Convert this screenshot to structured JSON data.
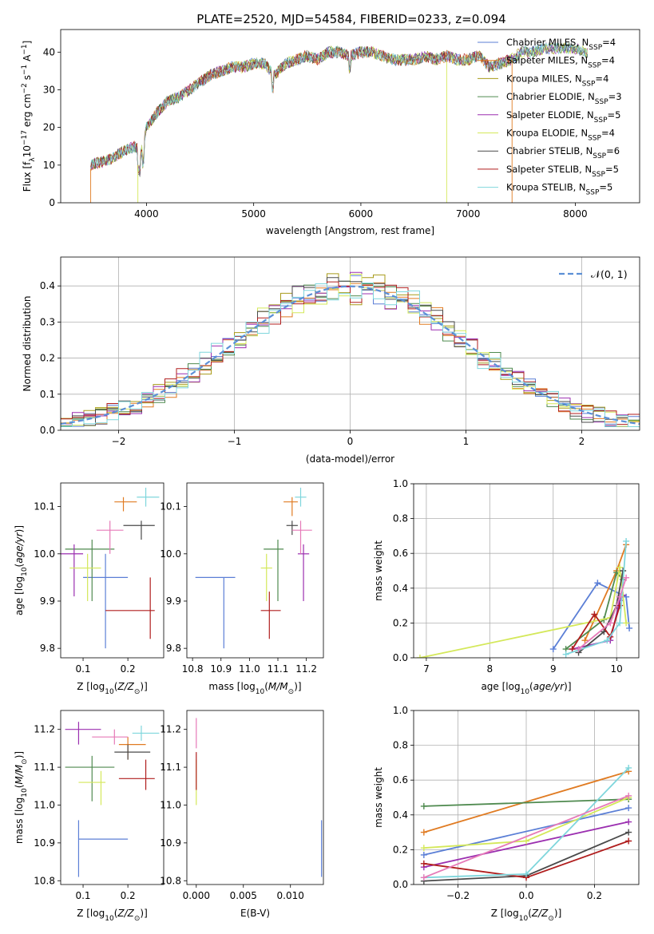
{
  "figure": {
    "title": "PLATE=2520, MJD=54584, FIBERID=0233, z=0.094"
  },
  "models": [
    {
      "name": "Chabrier MILES",
      "nssp": "4",
      "color": "#5b7fd6"
    },
    {
      "name": "Salpeter MILES",
      "nssp": "4",
      "color": "#e07b22"
    },
    {
      "name": "Kroupa MILES",
      "nssp": "4",
      "color": "#a89b1a"
    },
    {
      "name": "Chabrier ELODIE",
      "nssp": "3",
      "color": "#4f8a4f"
    },
    {
      "name": "Salpeter ELODIE",
      "nssp": "5",
      "color": "#9b2fb0"
    },
    {
      "name": "Kroupa ELODIE",
      "nssp": "4",
      "color": "#d4e85a"
    },
    {
      "name": "Chabrier STELIB",
      "nssp": "6",
      "color": "#4a4a4a"
    },
    {
      "name": "Salpeter STELIB",
      "nssp": "5",
      "color": "#b01e1e"
    },
    {
      "name": "Kroupa STELIB",
      "nssp": "5",
      "color": "#7fd6dc"
    }
  ],
  "extra_colors": {
    "pink": "#e67ab8",
    "normal_curve": "#5b8fd6"
  },
  "chart_data": [
    {
      "id": "spectrum",
      "type": "line",
      "xlabel": "wavelength [Angstrom, rest frame]",
      "ylabel": "Flux [f",
      "xlim": [
        3200,
        8600
      ],
      "ylim": [
        0,
        46
      ],
      "xticks": [
        "4000",
        "5000",
        "6000",
        "7000",
        "8000"
      ],
      "xtick_values": [
        4000,
        5000,
        6000,
        7000,
        8000
      ],
      "yticks": [
        "0",
        "10",
        "20",
        "30",
        "40"
      ],
      "ytick_values": [
        0,
        10,
        20,
        30,
        40
      ],
      "continuum": [
        [
          3480,
          10
        ],
        [
          3600,
          11
        ],
        [
          3700,
          12
        ],
        [
          3800,
          14
        ],
        [
          3900,
          15
        ],
        [
          3950,
          13
        ],
        [
          4000,
          20
        ],
        [
          4100,
          24
        ],
        [
          4200,
          27
        ],
        [
          4300,
          28
        ],
        [
          4400,
          30
        ],
        [
          4500,
          32
        ],
        [
          4600,
          34
        ],
        [
          4700,
          35
        ],
        [
          4800,
          36
        ],
        [
          4900,
          36
        ],
        [
          5000,
          37
        ],
        [
          5100,
          37
        ],
        [
          5200,
          34
        ],
        [
          5300,
          37
        ],
        [
          5400,
          38
        ],
        [
          5500,
          39
        ],
        [
          5600,
          38
        ],
        [
          5700,
          40
        ],
        [
          5800,
          40
        ],
        [
          5900,
          39
        ],
        [
          6000,
          40
        ],
        [
          6100,
          40
        ],
        [
          6200,
          39
        ],
        [
          6300,
          38
        ],
        [
          6400,
          38
        ],
        [
          6500,
          38
        ],
        [
          6600,
          39
        ],
        [
          6700,
          38
        ],
        [
          6800,
          39
        ],
        [
          6900,
          38
        ],
        [
          7000,
          38
        ],
        [
          7100,
          39
        ],
        [
          7200,
          36
        ],
        [
          7300,
          37
        ],
        [
          7400,
          38
        ],
        [
          7500,
          40
        ],
        [
          7600,
          40
        ],
        [
          7700,
          41
        ],
        [
          7800,
          41
        ],
        [
          7900,
          41
        ],
        [
          8000,
          41
        ],
        [
          8100,
          40
        ]
      ],
      "grid": false,
      "legend": "top-right"
    },
    {
      "id": "residuals",
      "type": "histogram",
      "xlabel": "(data-model)/error",
      "ylabel": "Normed distribution",
      "xlim": [
        -2.5,
        2.5
      ],
      "ylim": [
        0,
        0.48
      ],
      "xticks": [
        "−2",
        "−1",
        "0",
        "1",
        "2"
      ],
      "xtick_values": [
        -2,
        -1,
        0,
        1,
        2
      ],
      "yticks": [
        "0.0",
        "0.1",
        "0.2",
        "0.3",
        "0.4"
      ],
      "ytick_values": [
        0,
        0.1,
        0.2,
        0.3,
        0.4
      ],
      "normal_label": "𝒩(0, 1)",
      "bin_width": 0.1,
      "grid": true,
      "legend": "top-right"
    },
    {
      "id": "age-vs-Z",
      "type": "errorbar",
      "xlabel": "Z [log",
      "ylabel": "age  [log",
      "xlim": [
        0.05,
        0.28
      ],
      "ylim": [
        9.78,
        10.15
      ],
      "xticks": [
        "0.1",
        "0.2"
      ],
      "xtick_values": [
        0.1,
        0.2
      ],
      "yticks": [
        "9.8",
        "9.9",
        "10.0",
        "10.1"
      ],
      "ytick_values": [
        9.8,
        9.9,
        10.0,
        10.1
      ],
      "points": [
        {
          "m": 0,
          "x": 0.15,
          "y": 9.95,
          "ex": [
            0.1,
            0.2
          ],
          "ey": [
            9.8,
            10.0
          ]
        },
        {
          "m": 1,
          "x": 0.19,
          "y": 10.11,
          "ex": [
            0.17,
            0.22
          ],
          "ey": [
            10.09,
            10.12
          ]
        },
        {
          "m": 3,
          "x": 0.12,
          "y": 10.01,
          "ex": [
            0.06,
            0.17
          ],
          "ey": [
            9.9,
            10.03
          ]
        },
        {
          "m": 4,
          "x": 0.08,
          "y": 10.0,
          "ex": [
            0.05,
            0.1
          ],
          "ey": [
            9.91,
            10.02
          ]
        },
        {
          "m": 5,
          "x": 0.11,
          "y": 9.97,
          "ex": [
            0.07,
            0.14
          ],
          "ey": [
            9.9,
            10.0
          ]
        },
        {
          "m": 6,
          "x": 0.23,
          "y": 10.06,
          "ex": [
            0.19,
            0.26
          ],
          "ey": [
            10.03,
            10.07
          ]
        },
        {
          "m": 7,
          "x": 0.25,
          "y": 9.88,
          "ex": [
            0.15,
            0.26
          ],
          "ey": [
            9.82,
            9.95
          ]
        },
        {
          "m": 8,
          "x": 0.24,
          "y": 10.12,
          "ex": [
            0.22,
            0.27
          ],
          "ey": [
            10.1,
            10.14
          ]
        },
        {
          "m": 9,
          "x": 0.16,
          "y": 10.05,
          "ex": [
            0.13,
            0.19
          ],
          "ey": [
            10.0,
            10.07
          ]
        }
      ]
    },
    {
      "id": "age-vs-mass",
      "type": "errorbar",
      "xlabel": "mass [log",
      "ylabel": "",
      "xlim": [
        10.78,
        11.26
      ],
      "ylim": [
        9.78,
        10.15
      ],
      "xticks": [
        "10.8",
        "10.9",
        "11.0",
        "11.1",
        "11.2"
      ],
      "xtick_values": [
        10.8,
        10.9,
        11.0,
        11.1,
        11.2
      ],
      "yticks": [
        "9.8",
        "9.9",
        "10.0",
        "10.1"
      ],
      "ytick_values": [
        9.8,
        9.9,
        10.0,
        10.1
      ],
      "points": [
        {
          "m": 0,
          "x": 10.91,
          "y": 9.95,
          "ex": [
            10.81,
            10.95
          ],
          "ey": [
            9.8,
            9.95
          ]
        },
        {
          "m": 1,
          "x": 11.15,
          "y": 10.11,
          "ex": [
            11.12,
            11.17
          ],
          "ey": [
            10.08,
            10.12
          ]
        },
        {
          "m": 3,
          "x": 11.1,
          "y": 10.01,
          "ex": [
            11.05,
            11.12
          ],
          "ey": [
            9.9,
            10.03
          ]
        },
        {
          "m": 4,
          "x": 11.19,
          "y": 10.0,
          "ex": [
            11.17,
            11.21
          ],
          "ey": [
            9.9,
            10.02
          ]
        },
        {
          "m": 5,
          "x": 11.06,
          "y": 9.97,
          "ex": [
            11.04,
            11.08
          ],
          "ey": [
            9.9,
            10.0
          ]
        },
        {
          "m": 6,
          "x": 11.15,
          "y": 10.06,
          "ex": [
            11.13,
            11.17
          ],
          "ey": [
            10.04,
            10.07
          ]
        },
        {
          "m": 7,
          "x": 11.07,
          "y": 9.88,
          "ex": [
            11.04,
            11.11
          ],
          "ey": [
            9.82,
            9.92
          ]
        },
        {
          "m": 8,
          "x": 11.18,
          "y": 10.12,
          "ex": [
            11.16,
            11.2
          ],
          "ey": [
            10.1,
            10.14
          ]
        },
        {
          "m": 9,
          "x": 11.18,
          "y": 10.05,
          "ex": [
            11.15,
            11.22
          ],
          "ey": [
            10.0,
            10.07
          ]
        }
      ]
    },
    {
      "id": "weight-vs-age",
      "type": "line",
      "xlabel": "age  [log",
      "ylabel": "mass weight",
      "xlim": [
        6.8,
        10.35
      ],
      "ylim": [
        0,
        1
      ],
      "xticks": [
        "7",
        "8",
        "9",
        "10"
      ],
      "xtick_values": [
        7,
        8,
        9,
        10
      ],
      "yticks": [
        "0.0",
        "0.2",
        "0.4",
        "0.6",
        "0.8",
        "1.0"
      ],
      "ytick_values": [
        0,
        0.2,
        0.4,
        0.6,
        0.8,
        1.0
      ],
      "grid": true,
      "series": [
        {
          "m": 0,
          "x": [
            9.0,
            9.7,
            10.15,
            10.2
          ],
          "y": [
            0.05,
            0.43,
            0.35,
            0.17
          ]
        },
        {
          "m": 1,
          "x": [
            9.5,
            10.0,
            10.15
          ],
          "y": [
            0.1,
            0.5,
            0.65
          ]
        },
        {
          "m": 3,
          "x": [
            9.2,
            9.8,
            10.0,
            10.1
          ],
          "y": [
            0.05,
            0.22,
            0.49,
            0.45
          ]
        },
        {
          "m": 4,
          "x": [
            9.3,
            9.9,
            10.05,
            10.1
          ],
          "y": [
            0.05,
            0.1,
            0.33,
            0.36
          ]
        },
        {
          "m": 5,
          "x": [
            6.9,
            9.9,
            10.05,
            10.15
          ],
          "y": [
            0.0,
            0.23,
            0.52,
            0.2
          ]
        },
        {
          "m": 6,
          "x": [
            9.4,
            9.8,
            10.0,
            10.1
          ],
          "y": [
            0.03,
            0.15,
            0.3,
            0.5
          ]
        },
        {
          "m": 7,
          "x": [
            9.3,
            9.65,
            9.9,
            10.05
          ],
          "y": [
            0.05,
            0.25,
            0.12,
            0.3
          ]
        },
        {
          "m": 8,
          "x": [
            9.2,
            9.85,
            10.05,
            10.15
          ],
          "y": [
            0.02,
            0.1,
            0.2,
            0.67
          ]
        },
        {
          "m": 9,
          "x": [
            9.4,
            9.9,
            10.05,
            10.15
          ],
          "y": [
            0.05,
            0.2,
            0.35,
            0.46
          ]
        }
      ]
    },
    {
      "id": "mass-vs-Z",
      "type": "errorbar",
      "xlabel": "Z [log",
      "ylabel": "mass [log",
      "xlim": [
        0.05,
        0.28
      ],
      "ylim": [
        10.79,
        11.25
      ],
      "xticks": [
        "0.1",
        "0.2"
      ],
      "xtick_values": [
        0.1,
        0.2
      ],
      "yticks": [
        "10.8",
        "10.9",
        "11.0",
        "11.1",
        "11.2"
      ],
      "ytick_values": [
        10.8,
        10.9,
        11.0,
        11.1,
        11.2
      ],
      "points": [
        {
          "m": 0,
          "x": 0.09,
          "y": 10.91,
          "ex": [
            0.09,
            0.2
          ],
          "ey": [
            10.81,
            10.96
          ]
        },
        {
          "m": 1,
          "x": 0.2,
          "y": 11.16,
          "ex": [
            0.18,
            0.24
          ],
          "ey": [
            11.12,
            11.18
          ]
        },
        {
          "m": 3,
          "x": 0.12,
          "y": 11.1,
          "ex": [
            0.06,
            0.17
          ],
          "ey": [
            11.01,
            11.13
          ]
        },
        {
          "m": 4,
          "x": 0.09,
          "y": 11.2,
          "ex": [
            0.06,
            0.14
          ],
          "ey": [
            11.16,
            11.22
          ]
        },
        {
          "m": 5,
          "x": 0.14,
          "y": 11.06,
          "ex": [
            0.09,
            0.15
          ],
          "ey": [
            11.0,
            11.09
          ]
        },
        {
          "m": 6,
          "x": 0.2,
          "y": 11.14,
          "ex": [
            0.17,
            0.25
          ],
          "ey": [
            11.12,
            11.16
          ]
        },
        {
          "m": 7,
          "x": 0.24,
          "y": 11.07,
          "ex": [
            0.18,
            0.26
          ],
          "ey": [
            11.04,
            11.12
          ]
        },
        {
          "m": 8,
          "x": 0.23,
          "y": 11.19,
          "ex": [
            0.21,
            0.27
          ],
          "ey": [
            11.17,
            11.21
          ]
        },
        {
          "m": 9,
          "x": 0.17,
          "y": 11.18,
          "ex": [
            0.12,
            0.2
          ],
          "ey": [
            11.16,
            11.2
          ]
        }
      ]
    },
    {
      "id": "mass-vs-EBV",
      "type": "errorbar",
      "xlabel": "E(B-V)",
      "ylabel": "",
      "xlim": [
        -0.001,
        0.0135
      ],
      "ylim": [
        10.79,
        11.25
      ],
      "xticks": [
        "0.000",
        "0.005",
        "0.010"
      ],
      "xtick_values": [
        0,
        0.005,
        0.01
      ],
      "yticks": [
        "10.8",
        "10.9",
        "11.0",
        "11.1",
        "11.2"
      ],
      "ytick_values": [
        10.8,
        10.9,
        11.0,
        11.1,
        11.2
      ],
      "points": [
        {
          "m": 0,
          "x": 0.0133,
          "y": 10.9,
          "ex": [
            0.0133,
            0.0133
          ],
          "ey": [
            10.81,
            10.96
          ]
        },
        {
          "m": 5,
          "x": 0.0,
          "y": 11.06,
          "ex": [
            0.0,
            0.0
          ],
          "ey": [
            11.0,
            11.12
          ]
        },
        {
          "m": 7,
          "x": 0.0,
          "y": 11.08,
          "ex": [
            0.0,
            0.0
          ],
          "ey": [
            11.04,
            11.14
          ]
        },
        {
          "m": 9,
          "x": 0.0,
          "y": 11.2,
          "ex": [
            0.0,
            0.0
          ],
          "ey": [
            11.15,
            11.23
          ]
        }
      ]
    },
    {
      "id": "weight-vs-Z",
      "type": "line",
      "xlabel": "Z [log",
      "ylabel": "mass weight",
      "xlim": [
        -0.33,
        0.33
      ],
      "ylim": [
        0,
        1
      ],
      "xticks": [
        "−0.2",
        "0.0",
        "0.2"
      ],
      "xtick_values": [
        -0.2,
        0,
        0.2
      ],
      "yticks": [
        "0.0",
        "0.2",
        "0.4",
        "0.6",
        "0.8",
        "1.0"
      ],
      "ytick_values": [
        0,
        0.2,
        0.4,
        0.6,
        0.8,
        1.0
      ],
      "grid": true,
      "series": [
        {
          "m": 0,
          "x": [
            -0.3,
            0.3
          ],
          "y": [
            0.17,
            0.44
          ]
        },
        {
          "m": 1,
          "x": [
            -0.3,
            0.3
          ],
          "y": [
            0.3,
            0.65
          ]
        },
        {
          "m": 3,
          "x": [
            -0.3,
            0.3
          ],
          "y": [
            0.45,
            0.49
          ]
        },
        {
          "m": 4,
          "x": [
            -0.3,
            0.3
          ],
          "y": [
            0.1,
            0.36
          ]
        },
        {
          "m": 5,
          "x": [
            -0.3,
            0.0,
            0.3
          ],
          "y": [
            0.21,
            0.25,
            0.5
          ]
        },
        {
          "m": 6,
          "x": [
            -0.3,
            0.0,
            0.3
          ],
          "y": [
            0.02,
            0.05,
            0.3
          ]
        },
        {
          "m": 7,
          "x": [
            -0.3,
            0.0,
            0.3
          ],
          "y": [
            0.12,
            0.04,
            0.25
          ]
        },
        {
          "m": 8,
          "x": [
            -0.3,
            0.0,
            0.3
          ],
          "y": [
            0.04,
            0.06,
            0.67
          ]
        },
        {
          "m": 9,
          "x": [
            -0.3,
            0.3
          ],
          "y": [
            0.04,
            0.51
          ]
        }
      ]
    }
  ]
}
